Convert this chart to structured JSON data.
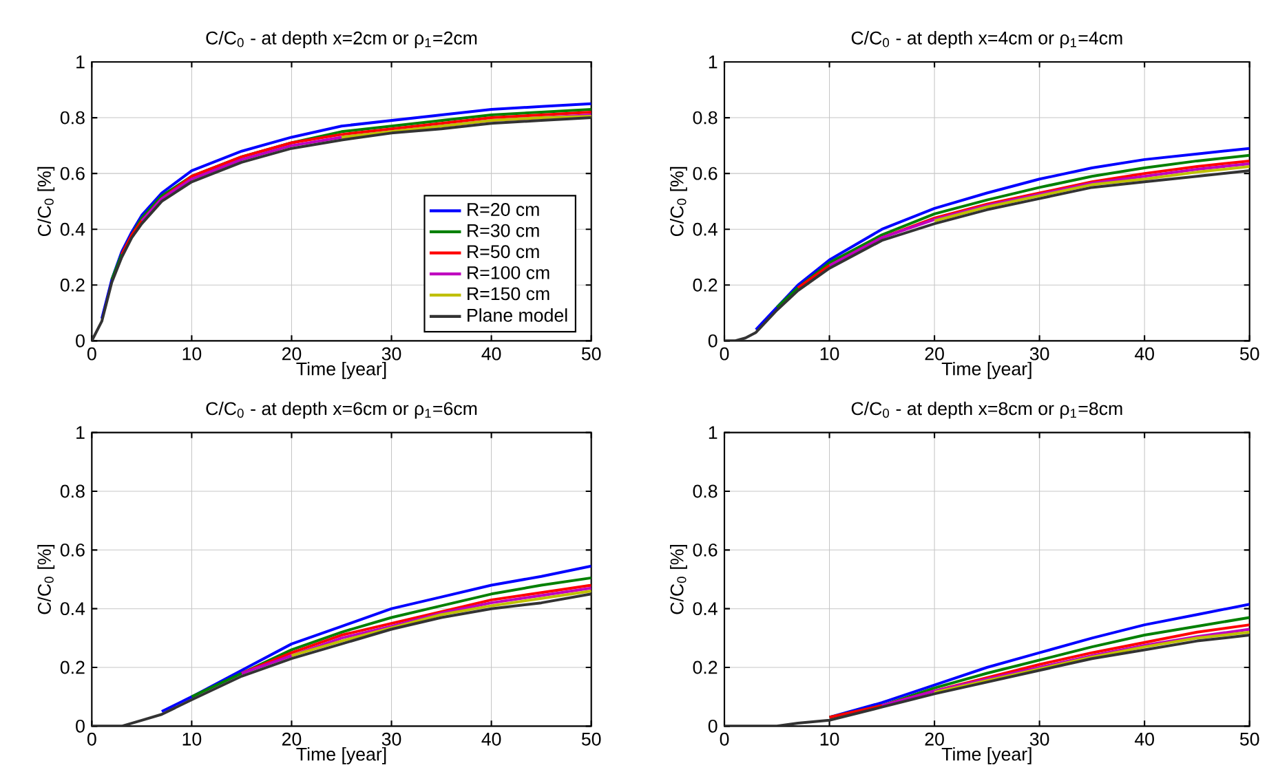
{
  "chart_data": [
    {
      "type": "line",
      "title": "C/C$_{0}$ - at depth x=2cm or ρ$_{1}$=2cm",
      "xlabel": "Time [year]",
      "ylabel": "C/C$_{0}$ [%]",
      "xlim": [
        0,
        50
      ],
      "ylim": [
        0,
        1
      ],
      "xticks": [
        0,
        10,
        20,
        30,
        40,
        50
      ],
      "yticks": [
        0,
        0.2,
        0.4,
        0.6,
        0.8,
        1
      ],
      "grid": true,
      "legend": "bottom right",
      "x": [
        0,
        1,
        2,
        3,
        4,
        5,
        7,
        10,
        15,
        20,
        25,
        30,
        35,
        40,
        45,
        50
      ],
      "series": [
        {
          "name": "R=20 cm",
          "color": "#0000ff",
          "values": [
            null,
            0.08,
            0.22,
            0.32,
            0.39,
            0.45,
            0.53,
            0.61,
            0.68,
            0.73,
            0.77,
            0.79,
            0.81,
            0.83,
            0.84,
            0.85
          ]
        },
        {
          "name": "R=30 cm",
          "color": "#008000",
          "values": [
            null,
            null,
            0.22,
            0.31,
            0.38,
            0.44,
            0.52,
            0.59,
            0.66,
            0.71,
            0.75,
            0.77,
            0.79,
            0.81,
            0.82,
            0.83
          ]
        },
        {
          "name": "R=50 cm",
          "color": "#ff0000",
          "values": [
            null,
            null,
            null,
            0.31,
            0.38,
            0.43,
            0.51,
            0.59,
            0.66,
            0.71,
            0.74,
            0.76,
            0.78,
            0.8,
            0.81,
            0.82
          ]
        },
        {
          "name": "R=100 cm",
          "color": "#bf00bf",
          "values": [
            null,
            null,
            null,
            null,
            null,
            0.43,
            0.51,
            0.58,
            0.65,
            0.7,
            0.73,
            0.75,
            0.77,
            0.79,
            0.8,
            0.81
          ]
        },
        {
          "name": "R=150 cm",
          "color": "#bfbf00",
          "values": [
            null,
            null,
            null,
            null,
            null,
            null,
            null,
            null,
            null,
            null,
            0.73,
            0.75,
            0.77,
            0.79,
            0.8,
            0.805
          ]
        },
        {
          "name": "Plane model",
          "color": "#333333",
          "values": [
            0,
            0.07,
            0.21,
            0.3,
            0.37,
            0.42,
            0.5,
            0.57,
            0.64,
            0.69,
            0.72,
            0.745,
            0.76,
            0.78,
            0.79,
            0.8
          ]
        }
      ]
    },
    {
      "type": "line",
      "title": "C/C$_{0}$ - at depth x=4cm or ρ$_{1}$=4cm",
      "xlabel": "Time [year]",
      "ylabel": "C/C$_{0}$ [%]",
      "xlim": [
        0,
        50
      ],
      "ylim": [
        0,
        1
      ],
      "xticks": [
        0,
        10,
        20,
        30,
        40,
        50
      ],
      "yticks": [
        0,
        0.2,
        0.4,
        0.6,
        0.8,
        1
      ],
      "grid": true,
      "x": [
        0,
        1,
        2,
        3,
        4,
        5,
        7,
        10,
        15,
        20,
        25,
        30,
        35,
        40,
        45,
        50
      ],
      "series": [
        {
          "color": "#0000ff",
          "values": [
            null,
            null,
            null,
            0.04,
            0.08,
            0.12,
            0.2,
            0.29,
            0.4,
            0.475,
            0.53,
            0.58,
            0.62,
            0.65,
            0.67,
            0.69
          ]
        },
        {
          "color": "#008000",
          "values": [
            null,
            null,
            null,
            null,
            null,
            0.12,
            0.19,
            0.28,
            0.38,
            0.455,
            0.505,
            0.55,
            0.59,
            0.62,
            0.645,
            0.665
          ]
        },
        {
          "color": "#ff0000",
          "values": [
            null,
            null,
            null,
            null,
            null,
            null,
            0.19,
            0.27,
            0.37,
            0.44,
            0.49,
            0.53,
            0.57,
            0.6,
            0.625,
            0.645
          ]
        },
        {
          "color": "#bf00bf",
          "values": [
            null,
            null,
            null,
            null,
            null,
            null,
            null,
            0.27,
            0.37,
            0.435,
            0.485,
            0.525,
            0.565,
            0.59,
            0.615,
            0.635
          ]
        },
        {
          "color": "#bfbf00",
          "values": [
            null,
            null,
            null,
            null,
            null,
            null,
            null,
            null,
            null,
            0.43,
            0.48,
            0.52,
            0.56,
            0.58,
            0.605,
            0.625
          ]
        },
        {
          "color": "#333333",
          "values": [
            0,
            0,
            0.01,
            0.03,
            0.07,
            0.11,
            0.18,
            0.26,
            0.36,
            0.42,
            0.47,
            0.51,
            0.55,
            0.57,
            0.59,
            0.61
          ]
        }
      ]
    },
    {
      "type": "line",
      "title": "C/C$_{0}$ - at depth x=6cm or ρ$_{1}$=6cm",
      "xlabel": "Time [year]",
      "ylabel": "C/C$_{0}$ [%]",
      "xlim": [
        0,
        50
      ],
      "ylim": [
        0,
        1
      ],
      "xticks": [
        0,
        10,
        20,
        30,
        40,
        50
      ],
      "yticks": [
        0,
        0.2,
        0.4,
        0.6,
        0.8,
        1
      ],
      "grid": true,
      "x": [
        0,
        2,
        3,
        5,
        7,
        10,
        15,
        20,
        25,
        30,
        35,
        40,
        45,
        50
      ],
      "series": [
        {
          "color": "#0000ff",
          "values": [
            null,
            null,
            null,
            null,
            0.05,
            0.1,
            0.19,
            0.28,
            0.34,
            0.4,
            0.44,
            0.48,
            0.51,
            0.545
          ]
        },
        {
          "color": "#008000",
          "values": [
            null,
            null,
            null,
            null,
            null,
            0.1,
            0.18,
            0.26,
            0.32,
            0.37,
            0.41,
            0.45,
            0.48,
            0.505
          ]
        },
        {
          "color": "#ff0000",
          "values": [
            null,
            null,
            null,
            null,
            null,
            null,
            0.18,
            0.25,
            0.31,
            0.35,
            0.39,
            0.43,
            0.455,
            0.48
          ]
        },
        {
          "color": "#bf00bf",
          "values": [
            null,
            null,
            null,
            null,
            null,
            null,
            0.18,
            0.24,
            0.3,
            0.34,
            0.385,
            0.42,
            0.445,
            0.47
          ]
        },
        {
          "color": "#bfbf00",
          "values": [
            null,
            null,
            null,
            null,
            null,
            null,
            null,
            0.24,
            0.29,
            0.335,
            0.38,
            0.41,
            0.435,
            0.46
          ]
        },
        {
          "color": "#333333",
          "values": [
            0,
            0,
            0,
            0.02,
            0.04,
            0.09,
            0.17,
            0.23,
            0.28,
            0.33,
            0.37,
            0.4,
            0.42,
            0.45
          ]
        }
      ]
    },
    {
      "type": "line",
      "title": "C/C$_{0}$ - at depth x=8cm or ρ$_{1}$=8cm",
      "xlabel": "Time [year]",
      "ylabel": "C/C$_{0}$ [%]",
      "xlim": [
        0,
        50
      ],
      "ylim": [
        0,
        1
      ],
      "xticks": [
        0,
        10,
        20,
        30,
        40,
        50
      ],
      "yticks": [
        0,
        0.2,
        0.4,
        0.6,
        0.8,
        1
      ],
      "grid": true,
      "x": [
        0,
        3,
        5,
        7,
        10,
        15,
        20,
        25,
        30,
        35,
        40,
        45,
        50
      ],
      "series": [
        {
          "color": "#0000ff",
          "values": [
            null,
            null,
            null,
            null,
            0.03,
            0.08,
            0.14,
            0.2,
            0.25,
            0.3,
            0.345,
            0.38,
            0.415
          ]
        },
        {
          "color": "#008000",
          "values": [
            null,
            null,
            null,
            null,
            0.03,
            0.07,
            0.13,
            0.18,
            0.225,
            0.27,
            0.31,
            0.34,
            0.37
          ]
        },
        {
          "color": "#ff0000",
          "values": [
            null,
            null,
            null,
            null,
            0.03,
            0.07,
            0.12,
            0.165,
            0.21,
            0.25,
            0.285,
            0.32,
            0.345
          ]
        },
        {
          "color": "#bf00bf",
          "values": [
            null,
            null,
            null,
            null,
            null,
            0.07,
            0.12,
            0.16,
            0.2,
            0.24,
            0.275,
            0.305,
            0.33
          ]
        },
        {
          "color": "#bfbf00",
          "values": [
            null,
            null,
            null,
            null,
            null,
            null,
            0.115,
            0.155,
            0.195,
            0.235,
            0.27,
            0.3,
            0.32
          ]
        },
        {
          "color": "#333333",
          "values": [
            0,
            0,
            0,
            0.01,
            0.02,
            0.065,
            0.11,
            0.15,
            0.19,
            0.23,
            0.26,
            0.29,
            0.31
          ]
        }
      ]
    }
  ]
}
